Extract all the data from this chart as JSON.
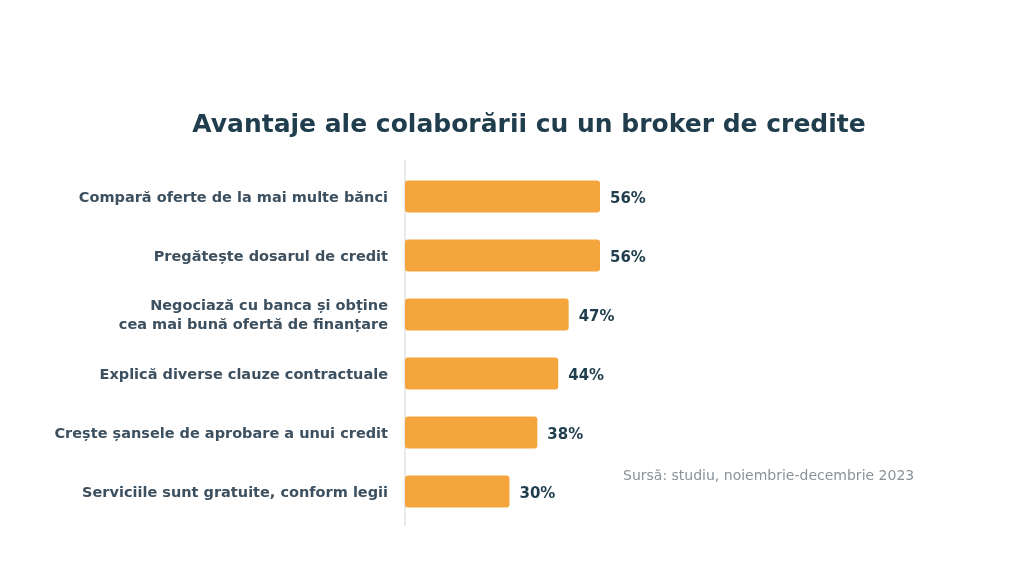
{
  "chart_data": {
    "type": "bar",
    "orientation": "horizontal",
    "relative": false,
    "title": "Avantaje ale colaborării cu un broker de credite",
    "categories": [
      "Compară oferte de la mai multe bănci",
      "Pregătește dosarul de credit",
      "Negociază cu banca și obține cea mai bună ofertă de finanțare",
      "Explică diverse clauze contractuale",
      "Crește șansele de aprobare a unui credit",
      "Serviciile sunt gratuite, conform legii"
    ],
    "values": [
      56,
      56,
      47,
      44,
      38,
      30
    ],
    "value_labels": [
      "56%",
      "56%",
      "47%",
      "44%",
      "38%",
      "30%"
    ],
    "color": "#f4a63c",
    "annotations": [
      "Sursă: studiu, noiembrie-decembrie 2023"
    ]
  }
}
